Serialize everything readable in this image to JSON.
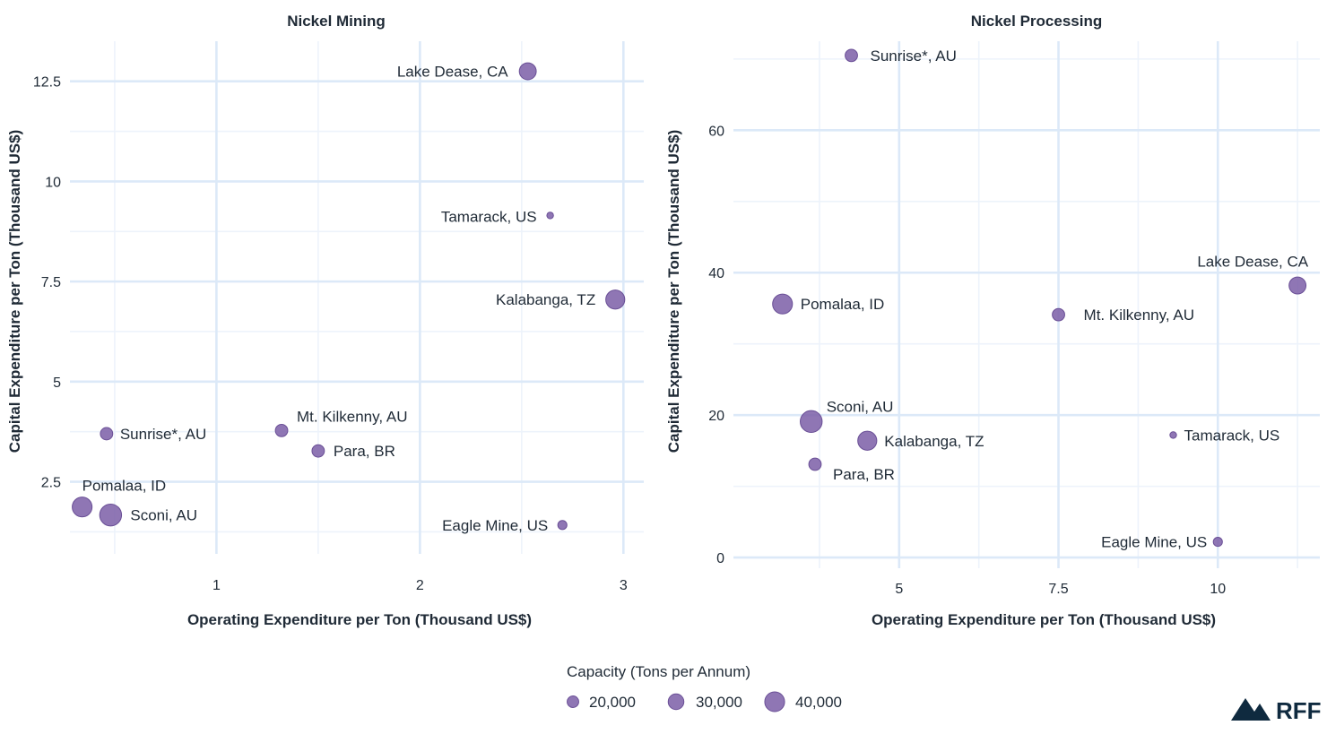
{
  "colors": {
    "point_fill": "#7b5ea7",
    "point_stroke": "#6a4f96",
    "grid_major": "#dce9f8",
    "grid_minor": "#edf3fb",
    "logo": "#0f2a3f"
  },
  "chart_data": [
    {
      "type": "scatter",
      "title": "Nickel Mining",
      "xlabel": "Operating Expenditure per Ton (Thousand US$)",
      "ylabel": "Capital Expenditure per Ton (Thousand US$)",
      "xlim": [
        0.28,
        3.1
      ],
      "ylim": [
        0.7,
        13.5
      ],
      "xticks": [
        1,
        2,
        3
      ],
      "xtick_labels": [
        "1",
        "2",
        "3"
      ],
      "yticks": [
        2.5,
        5,
        7.5,
        10,
        12.5
      ],
      "ytick_labels": [
        "2.5",
        "5",
        "7.5",
        "10",
        "12.5"
      ],
      "points": [
        {
          "name": "Lake Dease, CA",
          "x": 2.53,
          "y": 12.75,
          "capacity": 33000
        },
        {
          "name": "Tamarack, US",
          "x": 2.64,
          "y": 9.15,
          "capacity": 8000
        },
        {
          "name": "Kalabanga, TZ",
          "x": 2.96,
          "y": 7.05,
          "capacity": 38000
        },
        {
          "name": "Sunrise*, AU",
          "x": 0.46,
          "y": 3.7,
          "capacity": 22000
        },
        {
          "name": "Mt. Kilkenny, AU",
          "x": 1.32,
          "y": 3.78,
          "capacity": 22000
        },
        {
          "name": "Para, BR",
          "x": 1.5,
          "y": 3.27,
          "capacity": 22000
        },
        {
          "name": "Pomalaa, ID",
          "x": 0.34,
          "y": 1.87,
          "capacity": 40000
        },
        {
          "name": "Sconi, AU",
          "x": 0.48,
          "y": 1.67,
          "capacity": 45000
        },
        {
          "name": "Eagle Mine, US",
          "x": 2.7,
          "y": 1.42,
          "capacity": 14000
        }
      ]
    },
    {
      "type": "scatter",
      "title": "Nickel Processing",
      "xlabel": "Operating Expenditure per Ton (Thousand US$)",
      "ylabel": "Capital Expenditure per Ton (Thousand US$)",
      "xlim": [
        2.4,
        11.6
      ],
      "ylim": [
        -1.5,
        72.5
      ],
      "xticks": [
        5,
        7.5,
        10
      ],
      "xtick_labels": [
        "5",
        "7.5",
        "10"
      ],
      "yticks": [
        0,
        20,
        40,
        60
      ],
      "ytick_labels": [
        "0",
        "20",
        "40",
        "60"
      ],
      "points": [
        {
          "name": "Sunrise*, AU",
          "x": 4.25,
          "y": 70.5,
          "capacity": 22000
        },
        {
          "name": "Lake Dease, CA",
          "x": 11.25,
          "y": 38.2,
          "capacity": 33000
        },
        {
          "name": "Pomalaa, ID",
          "x": 3.17,
          "y": 35.6,
          "capacity": 40000
        },
        {
          "name": "Mt. Kilkenny, AU",
          "x": 7.5,
          "y": 34.1,
          "capacity": 22000
        },
        {
          "name": "Sconi, AU",
          "x": 3.62,
          "y": 19.1,
          "capacity": 45000
        },
        {
          "name": "Kalabanga, TZ",
          "x": 4.5,
          "y": 16.4,
          "capacity": 38000
        },
        {
          "name": "Tamarack, US",
          "x": 9.3,
          "y": 17.2,
          "capacity": 8000
        },
        {
          "name": "Para, BR",
          "x": 3.68,
          "y": 13.1,
          "capacity": 22000
        },
        {
          "name": "Eagle Mine, US",
          "x": 10.0,
          "y": 2.2,
          "capacity": 14000
        }
      ]
    }
  ],
  "legend": {
    "title": "Capacity (Tons per Annum)",
    "items": [
      {
        "label": "20,000",
        "capacity": 20000
      },
      {
        "label": "30,000",
        "capacity": 30000
      },
      {
        "label": "40,000",
        "capacity": 40000
      }
    ]
  },
  "logo": {
    "text": "RFF"
  }
}
